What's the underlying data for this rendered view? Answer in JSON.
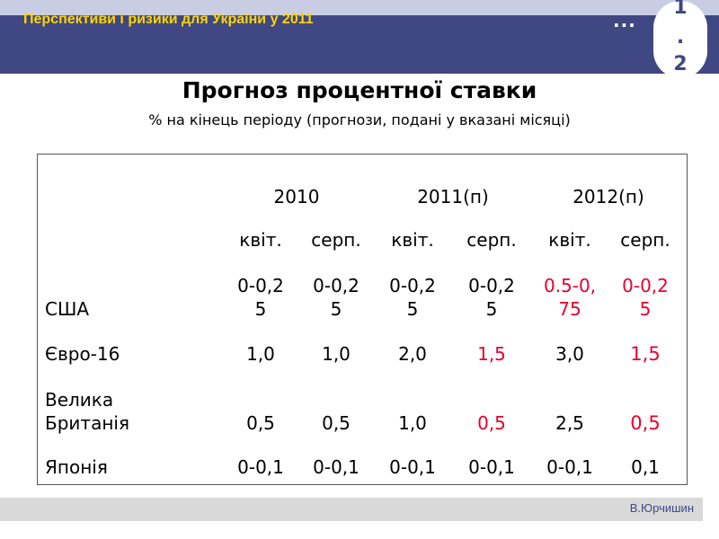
{
  "header": {
    "title": "Перспективи і ризики для України у 2011",
    "dots": "...",
    "badge": [
      "1",
      ".",
      "2"
    ]
  },
  "slide": {
    "title": "Прогноз процентної ставки",
    "subtitle": "% на кінець періоду (прогнози, подані у вказані місяці)"
  },
  "table": {
    "years": [
      "2010",
      "2011(п)",
      "2012(п)"
    ],
    "months": [
      "квіт.",
      "серп.",
      "квіт.",
      "серп.",
      "квіт.",
      "серп."
    ],
    "rows": [
      {
        "label": [
          "США"
        ],
        "values": [
          [
            "0-0,2",
            "5"
          ],
          [
            "0-0,2",
            "5"
          ],
          [
            "0-0,2",
            "5"
          ],
          [
            "0-0,2",
            "5"
          ],
          [
            "0.5-0,",
            "75"
          ],
          [
            "0-0,2",
            "5"
          ]
        ],
        "highlight": [
          false,
          false,
          false,
          false,
          true,
          true
        ]
      },
      {
        "label": [
          "Євро-16"
        ],
        "values": [
          "1,0",
          "1,0",
          "2,0",
          "1,5",
          "3,0",
          "1,5"
        ],
        "highlight": [
          false,
          false,
          false,
          true,
          false,
          true
        ]
      },
      {
        "label": [
          "Велика",
          "Британія"
        ],
        "values": [
          "0,5",
          "0,5",
          "1,0",
          "0,5",
          "2,5",
          "0,5"
        ],
        "highlight": [
          false,
          false,
          false,
          true,
          false,
          true
        ]
      },
      {
        "label": [
          "Японія"
        ],
        "values": [
          "0-0,1",
          "0-0,1",
          "0-0,1",
          "0-0,1",
          "0-0,1",
          "0,1"
        ],
        "highlight": [
          false,
          false,
          false,
          false,
          false,
          false
        ]
      }
    ]
  },
  "footer": {
    "author": "В.Юрчишин"
  },
  "colors": {
    "header_bg": "#3f4882",
    "header_title": "#ffd400",
    "highlight": "#e8002d",
    "footer_bg": "#d9d9d9"
  }
}
